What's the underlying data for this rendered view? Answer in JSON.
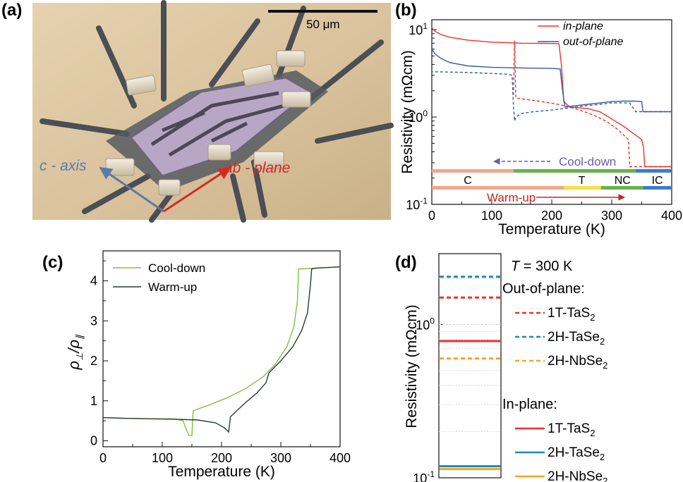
{
  "panels": {
    "a": {
      "label": "(a)",
      "scale_bar_text": "50 μm",
      "c_axis_label": "c - axis",
      "ab_plane_label": "ab - plane"
    },
    "b": {
      "label": "(b)"
    },
    "c": {
      "label": "(c)"
    },
    "d": {
      "label": "(d)"
    }
  },
  "colors": {
    "red": "#e8332e",
    "blue": "#3a5a9a",
    "green": "#7cc242",
    "dark": "#2b3a36",
    "purple": "#6b5bb0",
    "teal": "#1b8cb2",
    "orange": "#f5a623",
    "C": "#f3a58c",
    "T": "#f6e04a",
    "NC": "#6ab04c",
    "IC": "#3d7cc9"
  },
  "chart_data": [
    {
      "panel": "b",
      "type": "line",
      "xlabel": "Temperature (K)",
      "ylabel": "Resistivity (mΩcm)",
      "xlim": [
        0,
        400
      ],
      "ylim": [
        0.1,
        13
      ],
      "yscale": "log",
      "x_ticks": [
        "0",
        "100",
        "200",
        "300",
        "400"
      ],
      "y_ticks": [
        {
          "base": "10",
          "exp": "-1"
        },
        {
          "base": "10",
          "exp": "0"
        },
        {
          "base": "10",
          "exp": "1"
        }
      ],
      "legend": {
        "position": "top-right",
        "entries": [
          {
            "name": "in-plane",
            "color": "#e8332e"
          },
          {
            "name": "out-of-plane",
            "color": "#3a5a9a"
          }
        ]
      },
      "series": [
        {
          "name": "in-plane",
          "style": "solid",
          "color": "#e8332e",
          "points": [
            [
              0,
              10.5
            ],
            [
              5,
              9.6
            ],
            [
              15,
              8.8
            ],
            [
              30,
              8.2
            ],
            [
              60,
              7.6
            ],
            [
              100,
              7.2
            ],
            [
              150,
              7.0
            ],
            [
              200,
              6.95
            ],
            [
              212,
              6.9
            ],
            [
              216,
              4
            ],
            [
              220,
              1.5
            ],
            [
              230,
              1.3
            ],
            [
              260,
              1.25
            ],
            [
              280,
              1.15
            ],
            [
              300,
              0.95
            ],
            [
              320,
              0.78
            ],
            [
              340,
              0.62
            ],
            [
              350,
              0.55
            ],
            [
              353,
              0.45
            ],
            [
              355,
              0.27
            ],
            [
              400,
              0.27
            ]
          ]
        },
        {
          "name": "in-plane",
          "style": "dashed",
          "color": "#e8332e",
          "points": [
            [
              400,
              0.27
            ],
            [
              330,
              0.27
            ],
            [
              328,
              0.55
            ],
            [
              310,
              0.72
            ],
            [
              290,
              0.9
            ],
            [
              270,
              1.05
            ],
            [
              250,
              1.18
            ],
            [
              230,
              1.3
            ],
            [
              210,
              1.4
            ],
            [
              190,
              1.48
            ],
            [
              160,
              1.58
            ],
            [
              140,
              1.65
            ],
            [
              138,
              7.5
            ],
            [
              136,
              1.7
            ]
          ]
        },
        {
          "name": "out-of-plane",
          "style": "solid",
          "color": "#3a5a9a",
          "points": [
            [
              0,
              6.0
            ],
            [
              5,
              5.3
            ],
            [
              15,
              4.7
            ],
            [
              30,
              4.2
            ],
            [
              60,
              3.85
            ],
            [
              100,
              3.7
            ],
            [
              150,
              3.65
            ],
            [
              200,
              3.6
            ],
            [
              214,
              3.55
            ],
            [
              218,
              2
            ],
            [
              222,
              1.3
            ],
            [
              240,
              1.35
            ],
            [
              260,
              1.4
            ],
            [
              280,
              1.45
            ],
            [
              300,
              1.5
            ],
            [
              320,
              1.52
            ],
            [
              340,
              1.52
            ],
            [
              350,
              1.5
            ],
            [
              352,
              1.15
            ],
            [
              400,
              1.15
            ]
          ]
        },
        {
          "name": "out-of-plane",
          "style": "dashed",
          "color": "#3a5a9a",
          "points": [
            [
              400,
              1.15
            ],
            [
              340,
              1.15
            ],
            [
              330,
              1.45
            ],
            [
              300,
              1.45
            ],
            [
              280,
              1.4
            ],
            [
              260,
              1.35
            ],
            [
              240,
              1.3
            ],
            [
              220,
              1.25
            ],
            [
              200,
              1.2
            ],
            [
              170,
              1.15
            ],
            [
              150,
              1.1
            ],
            [
              140,
              1.0
            ],
            [
              138,
              0.9
            ],
            [
              136,
              1.4
            ],
            [
              134,
              3.0
            ],
            [
              125,
              3.1
            ],
            [
              100,
              3.15
            ],
            [
              80,
              3.2
            ],
            [
              50,
              3.25
            ],
            [
              0,
              3.3
            ]
          ]
        }
      ],
      "annotations": {
        "cool_down": "Cool-down",
        "warm_up": "Warm-up"
      },
      "phase_bars": {
        "cool_down": [
          {
            "label": "C",
            "from": 0,
            "to": 136,
            "color": "#f3a58c"
          },
          {
            "label": "NC",
            "from": 136,
            "to": 340,
            "color": "#6ab04c"
          },
          {
            "label": "IC",
            "from": 340,
            "to": 400,
            "color": "#3d7cc9"
          }
        ],
        "warm_up": [
          {
            "label": "C",
            "from": 0,
            "to": 220,
            "color": "#f3a58c"
          },
          {
            "label": "T",
            "from": 220,
            "to": 282,
            "color": "#f6e04a"
          },
          {
            "label": "NC",
            "from": 282,
            "to": 352,
            "color": "#6ab04c"
          },
          {
            "label": "IC",
            "from": 352,
            "to": 400,
            "color": "#3d7cc9"
          }
        ],
        "labels": [
          {
            "text": "C",
            "x": 60
          },
          {
            "text": "T",
            "x": 250
          },
          {
            "text": "NC",
            "x": 318
          },
          {
            "text": "IC",
            "x": 376
          }
        ]
      }
    },
    {
      "panel": "c",
      "type": "line",
      "xlabel": "Temperature (K)",
      "ylabel": "ρ⊥/ρ∥",
      "xlim": [
        0,
        400
      ],
      "ylim": [
        -0.15,
        4.75
      ],
      "x_ticks": [
        "0",
        "100",
        "200",
        "300",
        "400"
      ],
      "y_ticks": [
        "0",
        "1",
        "2",
        "3",
        "4"
      ],
      "legend": {
        "position": "top-left",
        "entries": [
          {
            "name": "Cool-down",
            "color": "#7cc242"
          },
          {
            "name": "Warm-up",
            "color": "#2b3a36"
          }
        ]
      },
      "series": [
        {
          "name": "Cool-down",
          "color": "#7cc242",
          "points": [
            [
              0,
              0.58
            ],
            [
              40,
              0.56
            ],
            [
              80,
              0.55
            ],
            [
              120,
              0.55
            ],
            [
              135,
              0.5
            ],
            [
              140,
              0.3
            ],
            [
              145,
              0.13
            ],
            [
              150,
              0.13
            ],
            [
              152,
              0.75
            ],
            [
              180,
              0.9
            ],
            [
              210,
              1.08
            ],
            [
              240,
              1.3
            ],
            [
              270,
              1.6
            ],
            [
              290,
              1.9
            ],
            [
              310,
              2.35
            ],
            [
              322,
              2.85
            ],
            [
              328,
              3.5
            ],
            [
              330,
              4.3
            ],
            [
              340,
              4.3
            ],
            [
              360,
              4.32
            ],
            [
              400,
              4.35
            ]
          ]
        },
        {
          "name": "Warm-up",
          "color": "#2b3a36",
          "points": [
            [
              0,
              0.58
            ],
            [
              40,
              0.56
            ],
            [
              80,
              0.55
            ],
            [
              120,
              0.54
            ],
            [
              160,
              0.52
            ],
            [
              190,
              0.45
            ],
            [
              205,
              0.32
            ],
            [
              212,
              0.22
            ],
            [
              215,
              0.6
            ],
            [
              240,
              0.95
            ],
            [
              260,
              1.2
            ],
            [
              275,
              1.45
            ],
            [
              280,
              1.7
            ],
            [
              300,
              2.0
            ],
            [
              320,
              2.35
            ],
            [
              335,
              2.75
            ],
            [
              345,
              3.2
            ],
            [
              350,
              3.9
            ],
            [
              352,
              4.3
            ],
            [
              360,
              4.32
            ],
            [
              400,
              4.35
            ]
          ]
        }
      ]
    },
    {
      "panel": "d",
      "type": "bar",
      "ylabel": "Resistivity (mΩcm)",
      "ylim": [
        0.1,
        2.9
      ],
      "yscale": "log",
      "y_ticks": [
        {
          "base": "10",
          "exp": "-1"
        },
        {
          "base": "10",
          "exp": "0"
        }
      ],
      "temperature_label": "T = 300 K",
      "groups": [
        {
          "title": "Out-of-plane:",
          "style": "dashed",
          "entries": [
            {
              "name": "1T-TaS",
              "sub": "2",
              "value": 1.5,
              "color": "#e8332e"
            },
            {
              "name": "2H-TaSe",
              "sub": "2",
              "value": 2.05,
              "color": "#1b8cb2"
            },
            {
              "name": "2H-NbSe",
              "sub": "2",
              "value": 0.6,
              "color": "#f5a623"
            }
          ]
        },
        {
          "title": "In-plane:",
          "style": "solid",
          "entries": [
            {
              "name": "1T-TaS",
              "sub": "2",
              "value": 0.78,
              "color": "#e8332e"
            },
            {
              "name": "2H-TaSe",
              "sub": "2",
              "value": 0.119,
              "color": "#1b8cb2"
            },
            {
              "name": "2H-NbSe",
              "sub": "2",
              "value": 0.114,
              "color": "#f5a623"
            }
          ]
        }
      ]
    }
  ]
}
